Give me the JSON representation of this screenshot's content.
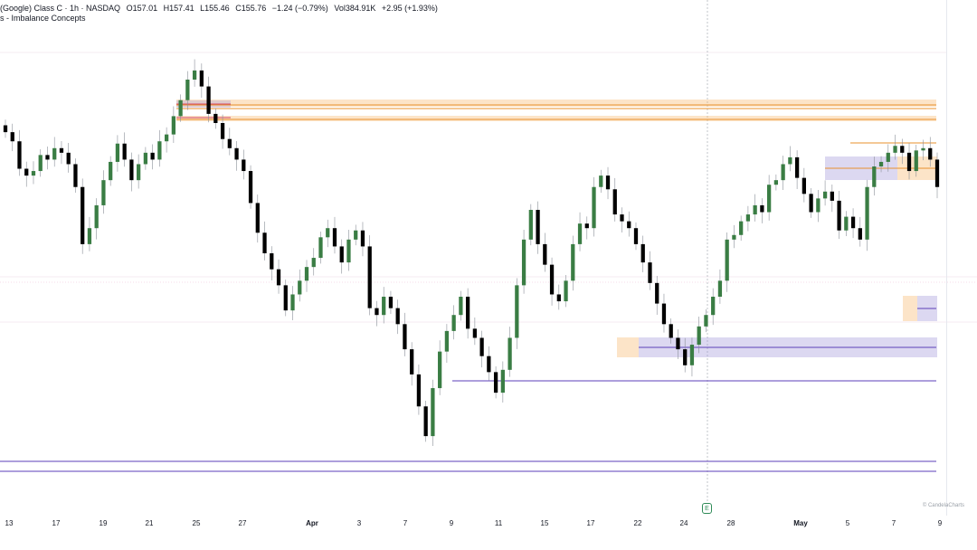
{
  "legend": {
    "symbol": "(Google) Class C · 1h · NASDAQ",
    "open": "O157.01",
    "high": "H157.41",
    "low": "L155.46",
    "close": "C155.76",
    "change": "−1.24 (−0.79%)",
    "volume": "Vol384.91K",
    "after": "+2.95 (+1.93%)",
    "indicator": "s - Imbalance Concepts"
  },
  "watermark": "© CandelaCharts",
  "event_marker": "E",
  "colors": {
    "up": "#3a7d44",
    "down": "#000000",
    "fvg_purple": "#9c8fd6",
    "fvg_orange": "#f7b360",
    "line_purple": "#5b3fb8",
    "line_orange": "#e8912e",
    "line_red": "#d44a6a"
  },
  "chart_data": {
    "type": "candlestick",
    "x_ticks": [
      "13",
      "17",
      "19",
      "21",
      "25",
      "27",
      "Apr",
      "3",
      "7",
      "9",
      "11",
      "15",
      "17",
      "22",
      "24",
      "28",
      "May",
      "5",
      "7",
      "9"
    ],
    "bold_ticks": [
      "Apr",
      "May"
    ],
    "ylim": [
      144,
      163
    ],
    "closes": [
      158.8,
      158.4,
      157.2,
      156.9,
      157.1,
      157.8,
      157.6,
      158.1,
      157.9,
      157.4,
      156.4,
      153.9,
      154.6,
      155.6,
      156.7,
      157.5,
      158.3,
      157.6,
      156.7,
      157.4,
      157.9,
      157.6,
      158.4,
      158.7,
      159.5,
      160.2,
      161.1,
      161.5,
      160.8,
      159.6,
      159.2,
      158.5,
      158.1,
      157.6,
      157.1,
      155.7,
      154.4,
      153.5,
      152.8,
      152.1,
      151.0,
      151.7,
      152.3,
      152.9,
      153.3,
      154.2,
      154.6,
      153.8,
      153.1,
      154.1,
      154.5,
      153.8,
      151.1,
      150.8,
      151.6,
      151.1,
      150.4,
      149.3,
      148.2,
      146.8,
      145.5,
      147.6,
      149.2,
      150.1,
      150.8,
      151.6,
      150.2,
      149.8,
      149.0,
      148.3,
      147.4,
      148.4,
      149.8,
      152.1,
      154.1,
      155.4,
      153.9,
      153.0,
      151.7,
      151.4,
      152.3,
      153.9,
      154.8,
      154.6,
      156.4,
      156.9,
      156.3,
      155.2,
      154.9,
      154.6,
      153.9,
      153.1,
      152.2,
      151.3,
      150.4,
      149.8,
      149.3,
      148.6,
      149.5,
      150.3,
      150.8,
      151.6,
      152.3,
      154.1,
      154.3,
      154.9,
      155.2,
      155.6,
      155.3,
      156.5,
      156.7,
      157.4,
      157.7,
      156.8,
      156.1,
      155.3,
      155.9,
      156.2,
      155.8,
      154.5,
      155.1,
      154.6,
      154.1,
      156.4,
      157.3,
      157.5,
      157.9,
      158.2,
      157.9,
      157.1,
      158.0,
      158.1,
      157.6,
      156.4
    ],
    "levels": [
      {
        "type": "resistance",
        "price": 160.7
      },
      {
        "type": "resistance",
        "price": 160.3
      },
      {
        "type": "support",
        "price": 147.6
      },
      {
        "type": "support",
        "price": 144.4
      },
      {
        "type": "support",
        "price": 144.0
      }
    ]
  }
}
